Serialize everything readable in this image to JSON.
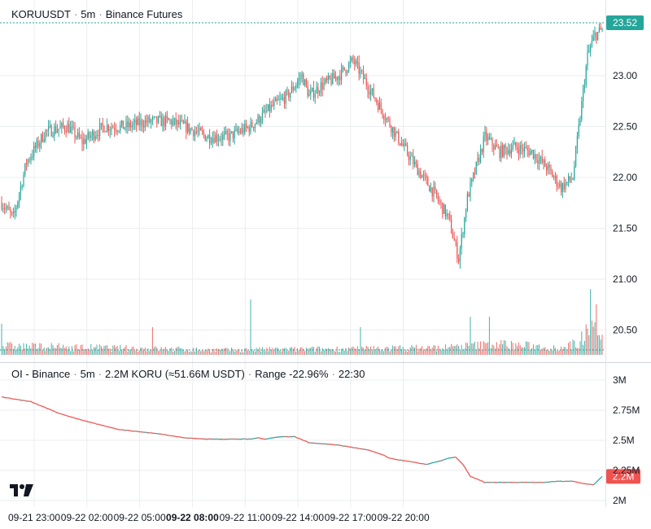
{
  "main_header": {
    "symbol": "KORUUSDT",
    "interval": "5m",
    "exchange": "Binance Futures"
  },
  "oi_header": {
    "name": "OI - Binance",
    "interval": "5m",
    "value": "2.2M KORU",
    "usd": "(≈51.66M USDT)",
    "range": "Range -22.96%",
    "time": "22:30"
  },
  "colors": {
    "up": "#26a69a",
    "down": "#ef5350",
    "grid": "#ebedf1",
    "text": "#131722",
    "axis_text": "#131722"
  },
  "chart_data": [
    {
      "type": "candlestick",
      "symbol": "KORUUSDT",
      "interval": "5m",
      "exchange": "Binance Futures",
      "last_price_label": "23.52",
      "y_ticks": [
        "23.00",
        "22.50",
        "22.00",
        "21.50",
        "21.00",
        "20.50"
      ],
      "ylim": [
        20.2,
        23.75
      ],
      "x_ticks": [
        {
          "label": "09-21 23:00",
          "bold": false
        },
        {
          "label": "09-22 02:00",
          "bold": false
        },
        {
          "label": "09-22 05:00",
          "bold": false
        },
        {
          "label": "09-22 08:00",
          "bold": true
        },
        {
          "label": "09-22 11:00",
          "bold": false
        },
        {
          "label": "09-22 14:00",
          "bold": false
        },
        {
          "label": "09-22 17:00",
          "bold": false
        },
        {
          "label": "09-22 20:00",
          "bold": false
        }
      ],
      "close_path": [
        [
          0,
          21.75
        ],
        [
          8,
          21.6
        ],
        [
          17,
          22.15
        ],
        [
          30,
          22.45
        ],
        [
          45,
          22.5
        ],
        [
          55,
          22.35
        ],
        [
          70,
          22.5
        ],
        [
          85,
          22.5
        ],
        [
          100,
          22.55
        ],
        [
          115,
          22.55
        ],
        [
          125,
          22.5
        ],
        [
          140,
          22.4
        ],
        [
          155,
          22.4
        ],
        [
          170,
          22.5
        ],
        [
          185,
          22.7
        ],
        [
          195,
          22.8
        ],
        [
          205,
          23.0
        ],
        [
          210,
          22.8
        ],
        [
          218,
          22.9
        ],
        [
          230,
          23.0
        ],
        [
          240,
          23.15
        ],
        [
          250,
          22.9
        ],
        [
          260,
          22.65
        ],
        [
          270,
          22.4
        ],
        [
          283,
          22.1
        ],
        [
          295,
          21.85
        ],
        [
          305,
          21.6
        ],
        [
          312,
          21.2
        ],
        [
          318,
          21.8
        ],
        [
          322,
          22.0
        ],
        [
          330,
          22.4
        ],
        [
          340,
          22.25
        ],
        [
          350,
          22.3
        ],
        [
          362,
          22.25
        ],
        [
          372,
          22.1
        ],
        [
          382,
          21.9
        ],
        [
          390,
          22.0
        ],
        [
          395,
          22.6
        ],
        [
          400,
          23.2
        ],
        [
          405,
          23.4
        ],
        [
          410,
          23.45
        ]
      ],
      "volume": {
        "shape": [
          [
            0,
            0.15
          ],
          [
            150,
            0.08
          ],
          [
            300,
            0.12
          ],
          [
            340,
            0.18
          ],
          [
            380,
            0.12
          ],
          [
            395,
            0.2
          ],
          [
            400,
            0.55
          ],
          [
            405,
            0.7
          ],
          [
            410,
            0.3
          ]
        ],
        "spikes": [
          [
            0,
            0.45
          ],
          [
            103,
            0.4
          ],
          [
            170,
            0.8
          ],
          [
            245,
            0.4
          ],
          [
            320,
            0.55
          ],
          [
            333,
            0.55
          ],
          [
            402,
            0.95
          ]
        ]
      }
    },
    {
      "type": "line",
      "title": "OI - Binance",
      "y_ticks": [
        "3M",
        "2.75M",
        "2.5M",
        "2.25M",
        "2M"
      ],
      "ylim": [
        1.995,
        3.0
      ],
      "last_value_label": "2.2M",
      "series": [
        {
          "x": [
            0,
            20,
            40,
            60,
            80,
            95,
            110,
            125,
            140,
            155,
            170,
            175,
            180,
            190,
            200,
            210,
            220,
            230,
            240,
            250,
            260,
            265,
            270,
            280,
            290,
            300,
            305,
            310,
            315,
            320,
            330,
            340,
            350,
            360,
            370,
            380,
            390,
            398,
            404,
            410
          ],
          "y": [
            2.86,
            2.82,
            2.72,
            2.65,
            2.59,
            2.57,
            2.55,
            2.52,
            2.51,
            2.51,
            2.51,
            2.52,
            2.51,
            2.53,
            2.53,
            2.48,
            2.47,
            2.46,
            2.44,
            2.42,
            2.38,
            2.35,
            2.34,
            2.32,
            2.3,
            2.33,
            2.35,
            2.36,
            2.3,
            2.2,
            2.15,
            2.15,
            2.15,
            2.15,
            2.15,
            2.16,
            2.16,
            2.14,
            2.13,
            2.2
          ]
        }
      ]
    }
  ]
}
